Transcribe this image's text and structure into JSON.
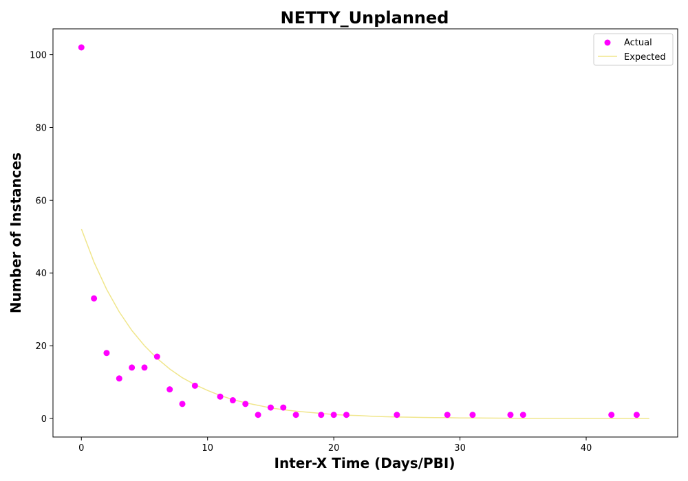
{
  "chart_data": {
    "type": "scatter",
    "title": "NETTY_Unplanned",
    "xlabel": "Inter-X Time (Days/PBI)",
    "ylabel": "Number of Instances",
    "xlim": [
      -2.25,
      47.25
    ],
    "ylim": [
      -5.1,
      107.1
    ],
    "xticks": [
      0,
      10,
      20,
      30,
      40
    ],
    "yticks": [
      0,
      20,
      40,
      60,
      80,
      100
    ],
    "grid": false,
    "legend_position": "top-right",
    "series": [
      {
        "name": "Actual",
        "kind": "scatter",
        "color": "#ff00ff",
        "x": [
          0,
          1,
          2,
          3,
          4,
          5,
          6,
          7,
          8,
          9,
          11,
          12,
          13,
          14,
          15,
          16,
          17,
          19,
          20,
          21,
          25,
          29,
          31,
          34,
          35,
          42,
          44
        ],
        "y": [
          102,
          33,
          18,
          11,
          14,
          14,
          17,
          8,
          4,
          9,
          6,
          5,
          4,
          1,
          3,
          3,
          1,
          1,
          1,
          1,
          1,
          1,
          1,
          1,
          1,
          1,
          1
        ]
      },
      {
        "name": "Expected",
        "kind": "line",
        "color": "#f0e68c",
        "x": [
          0,
          1,
          2,
          3,
          4,
          5,
          6,
          7,
          8,
          9,
          10,
          11,
          12,
          13,
          14,
          15,
          16,
          17,
          18,
          19,
          20,
          21,
          22,
          23,
          24,
          25,
          26,
          27,
          28,
          29,
          30,
          31,
          32,
          33,
          34,
          35,
          36,
          37,
          38,
          39,
          40,
          41,
          42,
          43,
          44,
          45
        ],
        "y": [
          52.1,
          43.0,
          35.5,
          29.3,
          24.2,
          20.0,
          16.5,
          13.6,
          11.2,
          9.3,
          7.7,
          6.3,
          5.2,
          4.3,
          3.6,
          2.9,
          2.4,
          2.0,
          1.7,
          1.4,
          1.1,
          0.9,
          0.8,
          0.6,
          0.5,
          0.4,
          0.35,
          0.29,
          0.24,
          0.2,
          0.16,
          0.13,
          0.11,
          0.09,
          0.08,
          0.06,
          0.05,
          0.04,
          0.035,
          0.03,
          0.025,
          0.02,
          0.017,
          0.014,
          0.011,
          0.009
        ]
      }
    ]
  }
}
